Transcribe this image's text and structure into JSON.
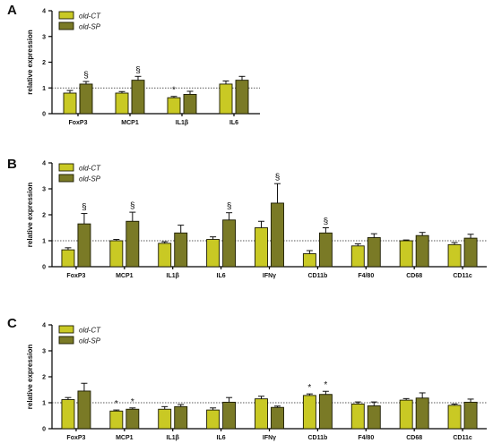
{
  "colors": {
    "old_ct": "#c9c924",
    "old_sp": "#7a7a26"
  },
  "chart_data": [
    {
      "type": "bar",
      "panel_label": "A",
      "ylabel": "relative expression",
      "ylim": [
        0,
        4
      ],
      "yticks": [
        "0",
        "1",
        "2",
        "3",
        "4"
      ],
      "reference_line": 1,
      "legend": {
        "position": "top-left",
        "entries": [
          "old-CT",
          "old-SP"
        ]
      },
      "categories": [
        "FoxP3",
        "MCP1",
        "IL1β",
        "IL6"
      ],
      "series": [
        {
          "name": "old-CT",
          "values": [
            0.8,
            0.8,
            0.62,
            1.15
          ],
          "errors": [
            0.1,
            0.06,
            0.05,
            0.12
          ]
        },
        {
          "name": "old-SP",
          "values": [
            1.15,
            1.3,
            0.75,
            1.3
          ],
          "errors": [
            0.1,
            0.15,
            0.12,
            0.15
          ]
        }
      ],
      "annotations": [
        {
          "category": 0,
          "series": 1,
          "text": "§"
        },
        {
          "category": 1,
          "series": 1,
          "text": "§"
        },
        {
          "category": 2,
          "series": 0,
          "text": "*"
        }
      ]
    },
    {
      "type": "bar",
      "panel_label": "B",
      "ylabel": "relative expression",
      "ylim": [
        0,
        4
      ],
      "yticks": [
        "0",
        "1",
        "2",
        "3",
        "4"
      ],
      "reference_line": 1,
      "legend": {
        "position": "top-left",
        "entries": [
          "old-CT",
          "old-SP"
        ]
      },
      "categories": [
        "FoxP3",
        "MCP1",
        "IL1β",
        "IL6",
        "IFNγ",
        "CD11b",
        "F4/80",
        "CD68",
        "CD11c"
      ],
      "series": [
        {
          "name": "old-CT",
          "values": [
            0.65,
            1.0,
            0.9,
            1.05,
            1.5,
            0.5,
            0.8,
            1.0,
            0.85
          ],
          "errors": [
            0.08,
            0.05,
            0.06,
            0.1,
            0.25,
            0.12,
            0.08,
            0.03,
            0.08
          ]
        },
        {
          "name": "old-SP",
          "values": [
            1.65,
            1.75,
            1.3,
            1.8,
            2.45,
            1.3,
            1.12,
            1.2,
            1.1
          ],
          "errors": [
            0.4,
            0.35,
            0.3,
            0.28,
            0.75,
            0.2,
            0.15,
            0.12,
            0.15
          ]
        }
      ],
      "annotations": [
        {
          "category": 0,
          "series": 1,
          "text": "§"
        },
        {
          "category": 1,
          "series": 1,
          "text": "§"
        },
        {
          "category": 3,
          "series": 1,
          "text": "§"
        },
        {
          "category": 4,
          "series": 1,
          "text": "§"
        },
        {
          "category": 5,
          "series": 1,
          "text": "§"
        }
      ]
    },
    {
      "type": "bar",
      "panel_label": "C",
      "ylabel": "relative expression",
      "ylim": [
        0,
        4
      ],
      "yticks": [
        "0",
        "1",
        "2",
        "3",
        "4"
      ],
      "reference_line": 1,
      "legend": {
        "position": "top-left",
        "entries": [
          "old-CT",
          "old-SP"
        ]
      },
      "categories": [
        "FoxP3",
        "MCP1",
        "IL1β",
        "IL6",
        "IFNγ",
        "CD11b",
        "F4/80",
        "CD68",
        "CD11c"
      ],
      "series": [
        {
          "name": "old-CT",
          "values": [
            1.12,
            0.68,
            0.75,
            0.72,
            1.15,
            1.28,
            0.95,
            1.1,
            0.9
          ],
          "errors": [
            0.08,
            0.04,
            0.1,
            0.08,
            0.1,
            0.06,
            0.08,
            0.06,
            0.05
          ]
        },
        {
          "name": "old-SP",
          "values": [
            1.45,
            0.75,
            0.85,
            1.02,
            0.82,
            1.32,
            0.88,
            1.18,
            1.02
          ],
          "errors": [
            0.3,
            0.05,
            0.08,
            0.18,
            0.05,
            0.12,
            0.15,
            0.2,
            0.12
          ]
        }
      ],
      "annotations": [
        {
          "category": 1,
          "series": 0,
          "text": "*"
        },
        {
          "category": 1,
          "series": 1,
          "text": "*"
        },
        {
          "category": 5,
          "series": 0,
          "text": "*"
        },
        {
          "category": 5,
          "series": 1,
          "text": "*"
        }
      ]
    }
  ]
}
